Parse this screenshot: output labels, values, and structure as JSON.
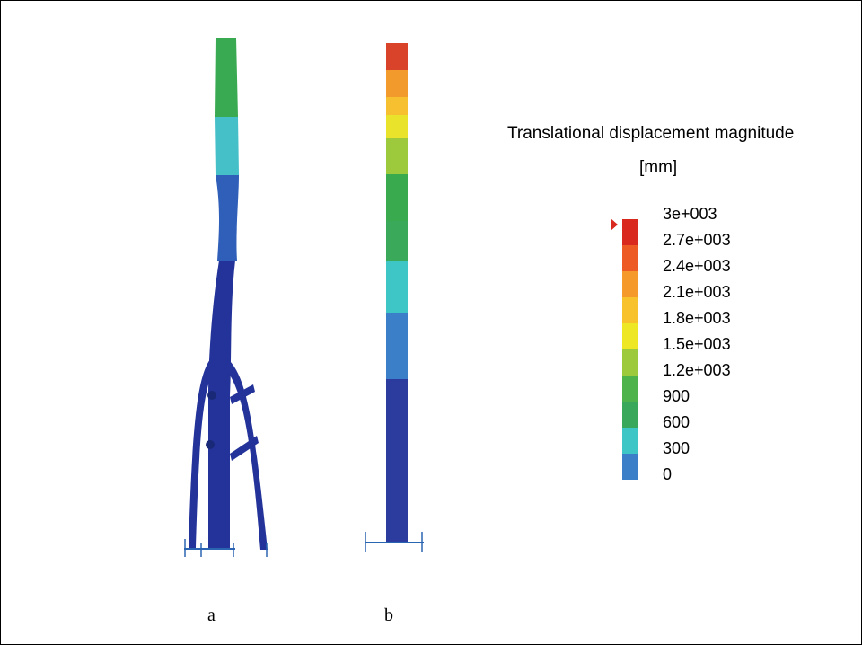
{
  "legend": {
    "title": "Translational displacement magnitude",
    "unit": "[mm]",
    "levels": [
      {
        "label": "3e+003",
        "color": "#d9281e"
      },
      {
        "label": "2.7e+003",
        "color": "#ee5a24"
      },
      {
        "label": "2.4e+003",
        "color": "#f59a2a"
      },
      {
        "label": "2.1e+003",
        "color": "#f8c22c"
      },
      {
        "label": "1.8e+003",
        "color": "#eee725"
      },
      {
        "label": "1.5e+003",
        "color": "#9cca3c"
      },
      {
        "label": "1.2e+003",
        "color": "#4fb34c"
      },
      {
        "label": "900",
        "color": "#3aa85a"
      },
      {
        "label": "600",
        "color": "#3ec5c5"
      },
      {
        "label": "300",
        "color": "#3a7fc8"
      },
      {
        "label": "0",
        "color": "#2b3c9e"
      }
    ]
  },
  "panels": {
    "a_label": "a",
    "b_label": "b"
  },
  "colors": {
    "deep_blue": "#23339a",
    "marker": "#d9281e"
  }
}
